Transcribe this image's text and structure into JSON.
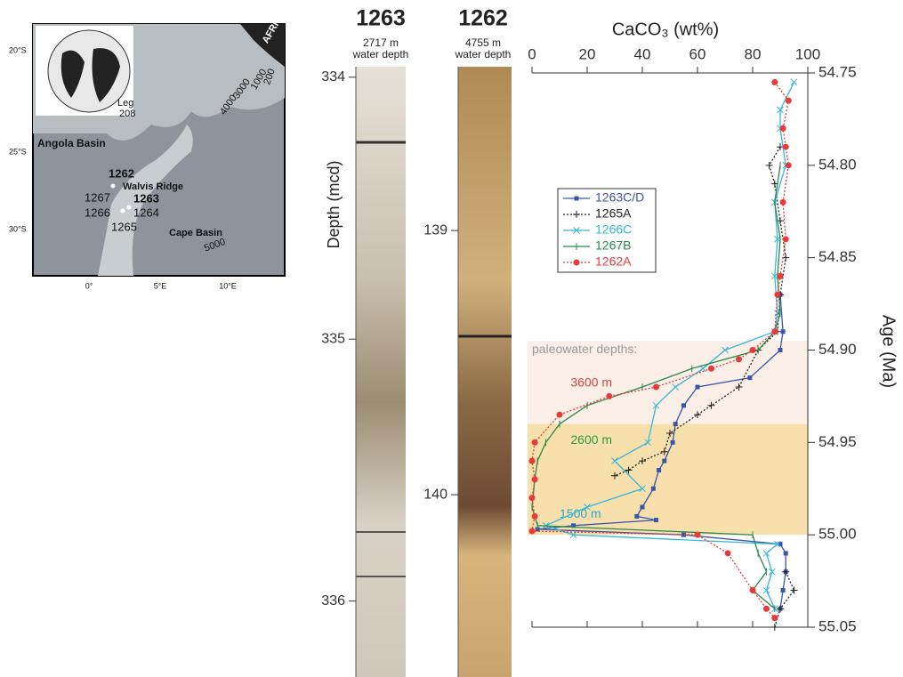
{
  "map": {
    "labels": [
      "AFRICA",
      "200",
      "1000",
      "3000",
      "4000",
      "Leg",
      "208",
      "Angola Basin",
      "1262",
      "Walvis Ridge",
      "1267",
      "1263",
      "1266",
      "1264",
      "1265",
      "Cape Basin",
      "5000"
    ],
    "lat_labels": [
      "20°S",
      "25°S",
      "30°S"
    ],
    "lon_labels": [
      "0°",
      "5°E",
      "10°E"
    ]
  },
  "cores": [
    {
      "site": "1263",
      "subtitle": [
        "2717 m",
        "water depth"
      ],
      "axis_label": "Depth (mcd)",
      "ylim": [
        333.96,
        336.29
      ],
      "yticks": [
        334,
        335,
        336
      ]
    },
    {
      "site": "1262",
      "subtitle": [
        "4755 m",
        "water depth"
      ],
      "ylim": [
        138.38,
        140.69
      ],
      "yticks": [
        139,
        140
      ]
    }
  ],
  "chart_data": {
    "type": "line",
    "title": "CaCO₃ (wt%)",
    "y_label": "Age (Ma)",
    "xlim": [
      0,
      100
    ],
    "xticks": [
      0,
      20,
      40,
      60,
      80,
      100
    ],
    "ylim": [
      54.75,
      55.05
    ],
    "yticks": [
      {
        "value": 54.75,
        "label": "54.75"
      },
      {
        "value": 54.8,
        "label": "54.80"
      },
      {
        "value": 54.85,
        "label": "54.85"
      },
      {
        "value": 54.9,
        "label": "54.90"
      },
      {
        "value": 54.95,
        "label": "54.95"
      },
      {
        "value": 55.0,
        "label": "55.00"
      },
      {
        "value": 55.05,
        "label": "55.05"
      }
    ],
    "bands": [
      {
        "from": 54.895,
        "to": 54.94,
        "color": "#fbefe7"
      },
      {
        "from": 54.94,
        "to": 55.0,
        "color": "#f8e0ad"
      }
    ],
    "annotations": [
      {
        "text": "paleowater depths:",
        "x": 0,
        "y": 54.9,
        "color": "#999999"
      },
      {
        "text": "3600 m",
        "x": 14,
        "y": 54.918,
        "color": "#e04040"
      },
      {
        "text": "2600 m",
        "x": 14,
        "y": 54.949,
        "color": "#2a9a4a"
      },
      {
        "text": "1500 m",
        "x": 10,
        "y": 54.989,
        "color": "#2aa8c8"
      }
    ],
    "series": [
      {
        "name": "1263C/D",
        "color": "#3a56a8",
        "marker": "square",
        "dash": "solid",
        "x": [
          90,
          91,
          90,
          79,
          60,
          55,
          52,
          51,
          48,
          46,
          44,
          40,
          38,
          45,
          15,
          2,
          55,
          90,
          92,
          92,
          91,
          90
        ],
        "y": [
          54.87,
          54.89,
          54.9,
          54.915,
          54.92,
          54.93,
          54.94,
          54.95,
          54.96,
          54.965,
          54.975,
          54.985,
          54.99,
          54.992,
          54.995,
          54.997,
          55.0,
          55.005,
          55.01,
          55.02,
          55.03,
          55.04
        ]
      },
      {
        "name": "1265A",
        "color": "#222222",
        "marker": "plus",
        "dash": "dotted",
        "x": [
          90,
          86,
          88,
          90,
          92,
          90,
          89,
          82,
          75,
          65,
          60,
          50,
          48,
          40,
          35,
          30,
          null,
          92,
          95,
          90,
          88
        ],
        "y": [
          54.79,
          54.8,
          54.81,
          54.83,
          54.85,
          54.87,
          54.89,
          54.9,
          54.92,
          54.93,
          54.935,
          54.945,
          54.955,
          54.96,
          54.965,
          54.968,
          null,
          55.02,
          55.03,
          55.04,
          55.05
        ]
      },
      {
        "name": "1266C",
        "color": "#36b8d8",
        "marker": "cross",
        "dash": "solid",
        "x": [
          95,
          90,
          90,
          92,
          88,
          89,
          88,
          89,
          88,
          70,
          62,
          52,
          45,
          42,
          30,
          40,
          20,
          5,
          15,
          89,
          85,
          87,
          85,
          88
        ],
        "y": [
          54.755,
          54.77,
          54.78,
          54.8,
          54.82,
          54.84,
          54.86,
          54.88,
          54.89,
          54.9,
          54.91,
          54.92,
          54.93,
          54.95,
          54.96,
          54.975,
          54.985,
          54.995,
          55.0,
          55.005,
          55.01,
          55.02,
          55.03,
          55.04
        ]
      },
      {
        "name": "1267B",
        "color": "#2a8a4a",
        "marker": "vbar",
        "dash": "solid",
        "x": [
          90,
          88,
          90,
          89,
          90,
          88,
          82,
          58,
          40,
          20,
          10,
          5,
          2,
          1,
          0,
          2,
          80,
          82,
          85,
          80,
          88
        ],
        "y": [
          54.8,
          54.82,
          54.84,
          54.86,
          54.88,
          54.89,
          54.9,
          54.91,
          54.92,
          54.93,
          54.94,
          54.95,
          54.96,
          54.97,
          54.985,
          54.995,
          55.0,
          55.01,
          55.02,
          55.03,
          55.04
        ]
      },
      {
        "name": "1262A",
        "color": "#e83a3a",
        "marker": "circle",
        "dash": "dotted",
        "x": [
          88,
          93,
          91,
          92,
          93,
          91,
          92,
          90,
          89,
          88,
          80,
          75,
          65,
          45,
          28,
          10,
          1,
          0,
          1,
          0,
          1,
          0,
          60,
          71,
          80,
          85,
          88
        ],
        "y": [
          54.755,
          54.765,
          54.78,
          54.79,
          54.8,
          54.82,
          54.84,
          54.86,
          54.87,
          54.89,
          54.9,
          54.905,
          54.91,
          54.92,
          54.925,
          54.935,
          54.95,
          54.96,
          54.97,
          54.98,
          54.99,
          54.998,
          55.0,
          55.01,
          55.03,
          55.04,
          55.045
        ]
      }
    ]
  }
}
